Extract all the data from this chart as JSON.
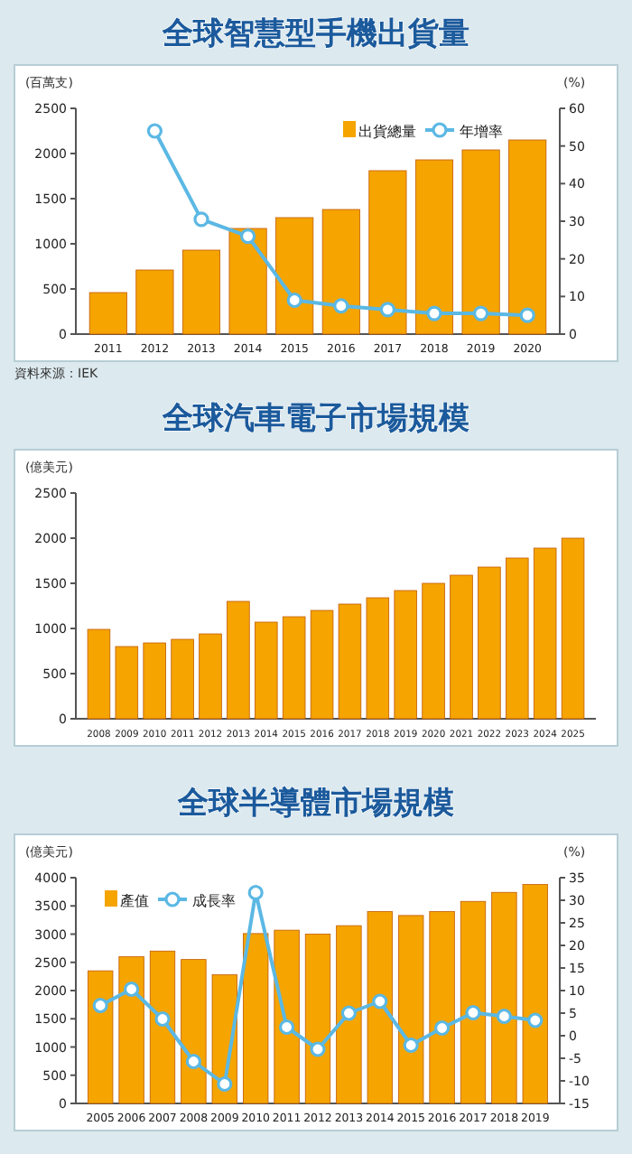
{
  "chart_data": [
    {
      "type": "bar",
      "title": "全球智慧型手機出貨量",
      "ylabel": "(百萬支)",
      "y2label": "(%)",
      "categories": [
        "2011",
        "2012",
        "2013",
        "2014",
        "2015",
        "2016",
        "2017",
        "2018",
        "2019",
        "2020"
      ],
      "series": [
        {
          "name": "出貨總量",
          "color": "#f5a400",
          "values": [
            460,
            710,
            930,
            1170,
            1290,
            1380,
            1810,
            1930,
            2040,
            2150
          ]
        },
        {
          "name": "年增率",
          "type": "line",
          "axis": "y2",
          "color": "#5bb8e4",
          "values": [
            null,
            54,
            30.5,
            26,
            9,
            7.5,
            6.5,
            5.5,
            5.5,
            5
          ]
        }
      ],
      "ylim": [
        0,
        2500
      ],
      "yticks": [
        0,
        500,
        1000,
        1500,
        2000,
        2500
      ],
      "y2lim": [
        0,
        60
      ],
      "y2ticks": [
        0,
        10,
        20,
        30,
        40,
        50,
        60
      ],
      "legend": "top right",
      "marker": "circle",
      "annotations": [
        "資料來源：IEK"
      ]
    },
    {
      "type": "bar",
      "title": "全球汽車電子市場規模",
      "ylabel": "(億美元)",
      "categories": [
        "2008",
        "2009",
        "2010",
        "2011",
        "2012",
        "2013",
        "2014",
        "2015",
        "2016",
        "2017",
        "2018",
        "2019",
        "2020",
        "2021",
        "2022",
        "2023",
        "2024",
        "2025"
      ],
      "series": [
        {
          "color": "#f5a400",
          "values": [
            990,
            800,
            840,
            880,
            940,
            1300,
            1070,
            1130,
            1200,
            1270,
            1340,
            1420,
            1500,
            1590,
            1680,
            1780,
            1890,
            2000
          ]
        }
      ],
      "ylim": [
        0,
        2500
      ],
      "yticks": [
        0,
        500,
        1000,
        1500,
        2000,
        2500
      ]
    },
    {
      "type": "bar",
      "title": "全球半導體市場規模",
      "ylabel": "(億美元)",
      "y2label": "(%)",
      "categories": [
        "2005",
        "2006",
        "2007",
        "2008",
        "2009",
        "2010",
        "2011",
        "2012",
        "2013",
        "2014",
        "2015",
        "2016",
        "2017",
        "2018",
        "2019"
      ],
      "series": [
        {
          "name": "產值",
          "color": "#f5a400",
          "values": [
            2350,
            2600,
            2700,
            2550,
            2280,
            3010,
            3070,
            3000,
            3150,
            3400,
            3330,
            3400,
            3580,
            3740,
            3880
          ]
        },
        {
          "name": "成長率",
          "type": "line",
          "axis": "y2",
          "color": "#5bb8e4",
          "values": [
            6.7,
            10.3,
            3.7,
            -5.7,
            -10.7,
            31.7,
            1.9,
            -3,
            5,
            7.6,
            -2.1,
            1.7,
            5.1,
            4.3,
            3.4
          ]
        }
      ],
      "ylim": [
        0,
        4000
      ],
      "yticks": [
        0,
        500,
        1000,
        1500,
        2000,
        2500,
        3000,
        3500,
        4000
      ],
      "y2lim": [
        -15,
        35
      ],
      "y2ticks": [
        -15,
        -10,
        -5,
        0,
        5,
        10,
        15,
        20,
        25,
        30,
        35
      ],
      "legend": "top left",
      "marker": "circle"
    }
  ]
}
